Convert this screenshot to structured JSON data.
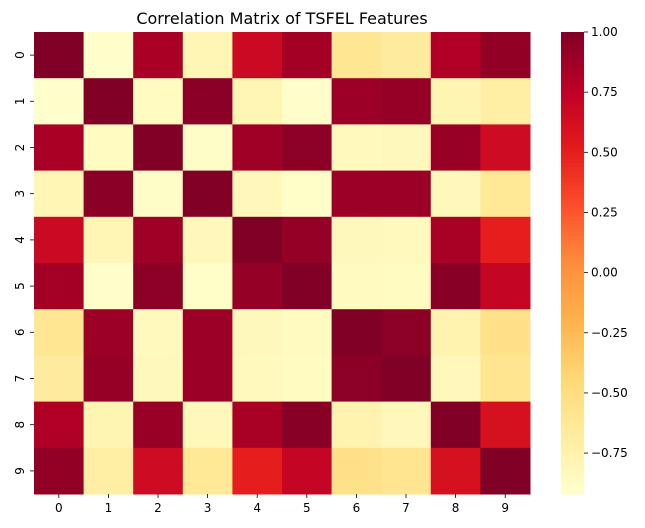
{
  "chart_data": {
    "type": "heatmap",
    "title": "Correlation Matrix of TSFEL Features",
    "x_labels": [
      "0",
      "1",
      "2",
      "3",
      "4",
      "5",
      "6",
      "7",
      "8",
      "9"
    ],
    "y_labels": [
      "0",
      "1",
      "2",
      "3",
      "4",
      "5",
      "6",
      "7",
      "8",
      "9"
    ],
    "values": [
      [
        1.0,
        -0.92,
        0.83,
        -0.8,
        0.68,
        0.86,
        -0.6,
        -0.66,
        0.81,
        0.93
      ],
      [
        -0.92,
        1.0,
        -0.86,
        0.96,
        -0.79,
        -0.91,
        0.89,
        0.91,
        -0.78,
        -0.7
      ],
      [
        0.83,
        -0.86,
        1.0,
        -0.89,
        0.88,
        0.95,
        -0.84,
        -0.83,
        0.9,
        0.66
      ],
      [
        -0.8,
        0.96,
        -0.89,
        1.0,
        -0.82,
        -0.9,
        0.89,
        0.89,
        -0.82,
        -0.62
      ],
      [
        0.68,
        -0.79,
        0.88,
        -0.82,
        1.0,
        0.92,
        -0.83,
        -0.84,
        0.84,
        0.5
      ],
      [
        0.86,
        -0.91,
        0.95,
        -0.9,
        0.92,
        1.0,
        -0.85,
        -0.86,
        0.97,
        0.71
      ],
      [
        -0.6,
        0.89,
        -0.84,
        0.89,
        -0.83,
        -0.85,
        1.0,
        0.95,
        -0.76,
        -0.54
      ],
      [
        -0.66,
        0.91,
        -0.83,
        0.89,
        -0.84,
        -0.86,
        0.95,
        1.0,
        -0.82,
        -0.58
      ],
      [
        0.81,
        -0.78,
        0.9,
        -0.82,
        0.84,
        0.97,
        -0.76,
        -0.82,
        1.0,
        0.6
      ],
      [
        0.93,
        -0.7,
        0.66,
        -0.62,
        0.5,
        0.71,
        -0.54,
        -0.58,
        0.6,
        1.0
      ]
    ],
    "colorscale": "YlOrRd",
    "vmin": -0.92,
    "vmax": 1.0,
    "colorbar_ticks": [
      "1.00",
      "0.75",
      "0.50",
      "0.25",
      "0.00",
      "−0.25",
      "−0.50",
      "−0.75"
    ],
    "colorbar_tick_values": [
      1.0,
      0.75,
      0.5,
      0.25,
      0.0,
      -0.25,
      -0.5,
      -0.75
    ],
    "xlabel": "",
    "ylabel": ""
  }
}
